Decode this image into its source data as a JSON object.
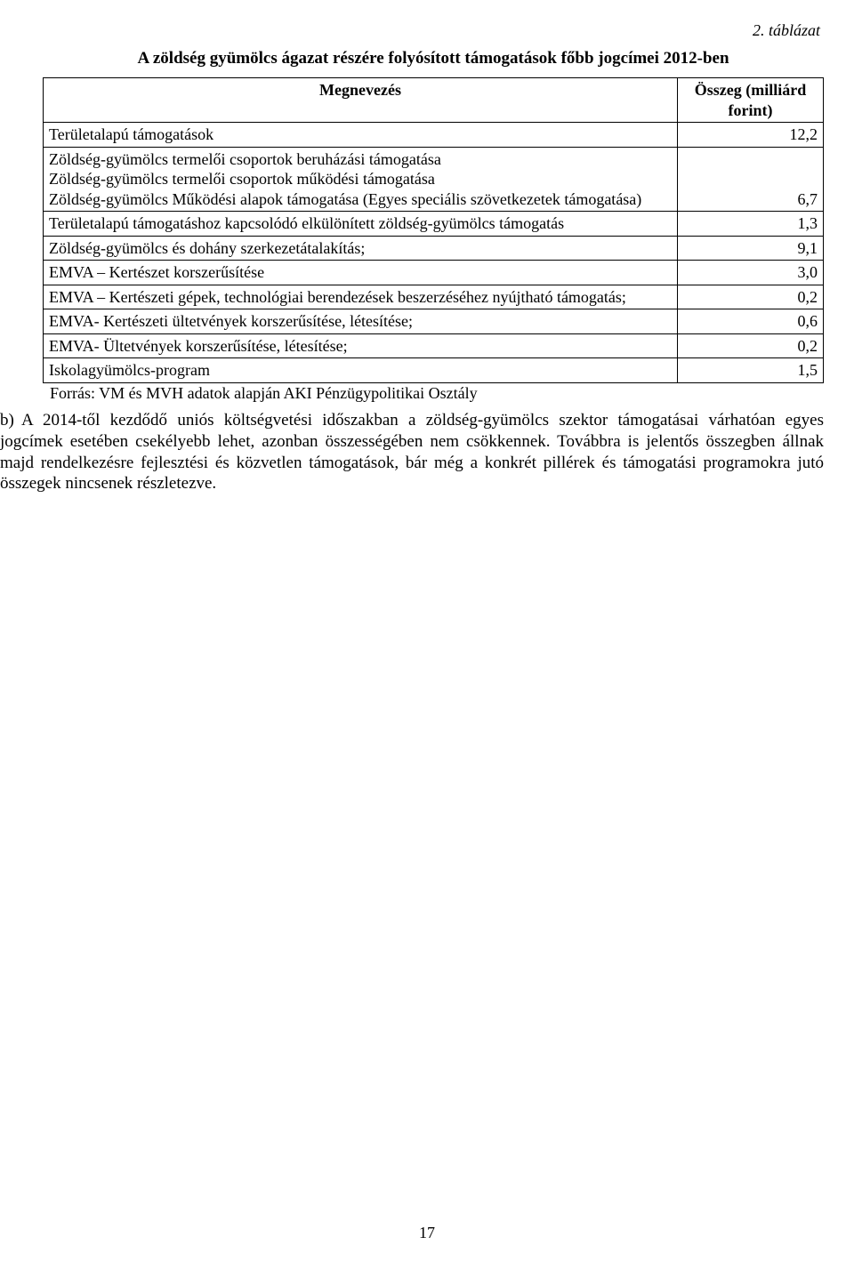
{
  "table_label": "2. táblázat",
  "table_title": "A zöldség gyümölcs ágazat részére folyósított támogatások főbb jogcímei 2012-ben",
  "header": {
    "name": "Megnevezés",
    "value": "Összeg (milliárd forint)"
  },
  "rows": [
    {
      "name": "Területalapú támogatások",
      "value": "12,2"
    },
    {
      "name": "Zöldség-gyümölcs termelői csoportok beruházási támogatása\nZöldség-gyümölcs termelői csoportok működési támogatása\nZöldség-gyümölcs Működési alapok támogatása (Egyes speciális szövetkezetek támogatása)",
      "value": "6,7"
    },
    {
      "name": "Területalapú támogatáshoz kapcsolódó elkülönített zöldség-gyümölcs támogatás",
      "value": "1,3"
    },
    {
      "name": "Zöldség-gyümölcs és dohány szerkezetátalakítás;",
      "value": "9,1"
    },
    {
      "name": "EMVA – Kertészet korszerűsítése",
      "value": "3,0"
    },
    {
      "name": "EMVA – Kertészeti gépek, technológiai berendezések beszerzéséhez nyújtható támogatás;",
      "value": "0,2"
    },
    {
      "name": "EMVA- Kertészeti ültetvények korszerűsítése, létesítése;",
      "value": "0,6"
    },
    {
      "name": "EMVA- Ültetvények korszerűsítése, létesítése;",
      "value": "0,2"
    },
    {
      "name": "Iskolagyümölcs-program",
      "value": "1,5"
    }
  ],
  "source": "Forrás: VM és MVH adatok alapján AKI Pénzügypolitikai Osztály",
  "paragraph_b": {
    "marker": "b)",
    "text": "A 2014-től kezdődő uniós költségvetési időszakban a zöldség-gyümölcs szektor támogatásai várhatóan egyes jogcímek esetében csekélyebb lehet, azonban összességében nem csökkennek. Továbbra is jelentős összegben állnak majd rendelkezésre fejlesztési és közvetlen támogatások, bár még a konkrét pillérek és támogatási programokra jutó összegek nincsenek részletezve."
  },
  "page_number": "17"
}
